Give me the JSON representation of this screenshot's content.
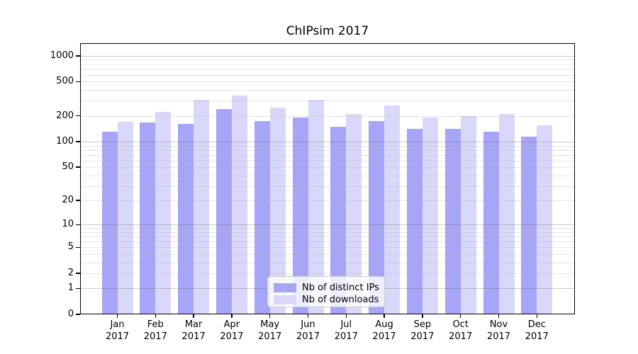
{
  "title": "ChIPsim 2017",
  "colors": {
    "bar_ips": "#a7a5f7",
    "bar_downloads": "#d9d8fa",
    "grid_major": "#c2c2c2",
    "grid_minor": "#e8e8e8",
    "axis": "#000000",
    "legend_border": "#cccccc"
  },
  "y_axis": {
    "tick_values": [
      0,
      1,
      2,
      5,
      10,
      20,
      50,
      100,
      200,
      500,
      1000
    ],
    "tick_labels": [
      "0",
      "1",
      "2",
      "5",
      "10",
      "20",
      "50",
      "100",
      "200",
      "500",
      "1000"
    ]
  },
  "x_axis": {
    "months": [
      "Jan",
      "Feb",
      "Mar",
      "Apr",
      "May",
      "Jun",
      "Jul",
      "Aug",
      "Sep",
      "Oct",
      "Nov",
      "Dec"
    ],
    "year": "2017"
  },
  "legend": {
    "items": [
      {
        "label": "Nb of distinct IPs"
      },
      {
        "label": "Nb of downloads"
      }
    ]
  },
  "chart_data": {
    "type": "bar",
    "title": "ChIPsim 2017",
    "xlabel": "",
    "ylabel": "",
    "categories": [
      "Jan 2017",
      "Feb 2017",
      "Mar 2017",
      "Apr 2017",
      "May 2017",
      "Jun 2017",
      "Jul 2017",
      "Aug 2017",
      "Sep 2017",
      "Oct 2017",
      "Nov 2017",
      "Dec 2017"
    ],
    "series": [
      {
        "name": "Nb of distinct IPs",
        "color": "#a7a5f7",
        "values": [
          132,
          167,
          162,
          240,
          173,
          192,
          149,
          173,
          142,
          142,
          131,
          115
        ]
      },
      {
        "name": "Nb of downloads",
        "color": "#d9d8fa",
        "values": [
          172,
          225,
          308,
          345,
          248,
          307,
          211,
          262,
          192,
          200,
          211,
          156
        ]
      }
    ],
    "yscale": "log1p",
    "y_ticks": [
      0,
      1,
      2,
      5,
      10,
      20,
      50,
      100,
      200,
      500,
      1000
    ],
    "ylim": [
      0,
      1400
    ],
    "grid": "horizontal, minor log gridlines",
    "legend_position": "lower center"
  }
}
